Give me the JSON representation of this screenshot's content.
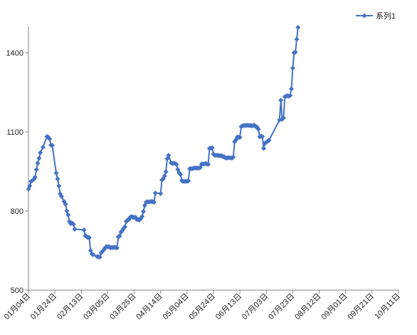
{
  "chart_data": {
    "type": "line",
    "title": "",
    "xlabel": "",
    "ylabel": "",
    "ylim": [
      500,
      1500
    ],
    "yticks": [
      500,
      800,
      1100,
      1400
    ],
    "xticks": [
      "01月04日",
      "01月24日",
      "02月13日",
      "03月05日",
      "03月25日",
      "04月14日",
      "05月04日",
      "05月24日",
      "06月13日",
      "07月03日",
      "07月23日",
      "08月12日",
      "09月01日",
      "09月21日",
      "10月11日"
    ],
    "grid": false,
    "legend_position": "top-right",
    "line_color": "#4472C4",
    "series": [
      {
        "name": "系列1",
        "points": [
          [
            0,
            883
          ],
          [
            1,
            895
          ],
          [
            2,
            912
          ],
          [
            4,
            920
          ],
          [
            5,
            928
          ],
          [
            6,
            957
          ],
          [
            7,
            981
          ],
          [
            8,
            1000
          ],
          [
            9,
            1021
          ],
          [
            11,
            1042
          ],
          [
            14,
            1082
          ],
          [
            15,
            1080
          ],
          [
            16,
            1073
          ],
          [
            17,
            1050
          ],
          [
            18,
            1049
          ],
          [
            21,
            944
          ],
          [
            22,
            922
          ],
          [
            23,
            895
          ],
          [
            24,
            865
          ],
          [
            25,
            855
          ],
          [
            27,
            836
          ],
          [
            28,
            826
          ],
          [
            29,
            800
          ],
          [
            30,
            785
          ],
          [
            31,
            760
          ],
          [
            32,
            752
          ],
          [
            33,
            754
          ],
          [
            34,
            750
          ],
          [
            35,
            731
          ],
          [
            42,
            728
          ],
          [
            43,
            706
          ],
          [
            44,
            703
          ],
          [
            45,
            699
          ],
          [
            46,
            699
          ],
          [
            47,
            650
          ],
          [
            48,
            637
          ],
          [
            49,
            634
          ],
          [
            52,
            627
          ],
          [
            53,
            626
          ],
          [
            54,
            625
          ],
          [
            55,
            641
          ],
          [
            56,
            647
          ],
          [
            57,
            653
          ],
          [
            58,
            660
          ],
          [
            59,
            665
          ],
          [
            60,
            664
          ],
          [
            61,
            665
          ],
          [
            62,
            660
          ],
          [
            63,
            662
          ],
          [
            64,
            661
          ],
          [
            65,
            663
          ],
          [
            66,
            661
          ],
          [
            67,
            660
          ],
          [
            68,
            702
          ],
          [
            69,
            705
          ],
          [
            70,
            720
          ],
          [
            71,
            726
          ],
          [
            72,
            734
          ],
          [
            73,
            740
          ],
          [
            74,
            760
          ],
          [
            75,
            766
          ],
          [
            76,
            767
          ],
          [
            77,
            776
          ],
          [
            78,
            779
          ],
          [
            79,
            776
          ],
          [
            80,
            776
          ],
          [
            81,
            776
          ],
          [
            82,
            768
          ],
          [
            83,
            768
          ],
          [
            84,
            766
          ],
          [
            85,
            771
          ],
          [
            86,
            779
          ],
          [
            87,
            798
          ],
          [
            88,
            821
          ],
          [
            89,
            833
          ],
          [
            90,
            835
          ],
          [
            91,
            834
          ],
          [
            92,
            835
          ],
          [
            93,
            836
          ],
          [
            94,
            835
          ],
          [
            95,
            833
          ],
          [
            96,
            868
          ],
          [
            100,
            866
          ],
          [
            101,
            918
          ],
          [
            102,
            922
          ],
          [
            103,
            933
          ],
          [
            104,
            949
          ],
          [
            105,
            998
          ],
          [
            106,
            1011
          ],
          [
            108,
            982
          ],
          [
            109,
            980
          ],
          [
            110,
            981
          ],
          [
            111,
            980
          ],
          [
            112,
            977
          ],
          [
            113,
            957
          ],
          [
            114,
            945
          ],
          [
            115,
            939
          ],
          [
            116,
            915
          ],
          [
            117,
            913
          ],
          [
            118,
            912
          ],
          [
            119,
            913
          ],
          [
            120,
            913
          ],
          [
            121,
            914
          ],
          [
            122,
            960
          ],
          [
            123,
            960
          ],
          [
            124,
            960
          ],
          [
            125,
            963
          ],
          [
            126,
            963
          ],
          [
            127,
            963
          ],
          [
            128,
            963
          ],
          [
            129,
            963
          ],
          [
            130,
            965
          ],
          [
            131,
            978
          ],
          [
            132,
            978
          ],
          [
            133,
            978
          ],
          [
            134,
            980
          ],
          [
            135,
            978
          ],
          [
            136,
            977
          ],
          [
            137,
            1037
          ],
          [
            138,
            1038
          ],
          [
            139,
            1040
          ],
          [
            140,
            1016
          ],
          [
            141,
            1011
          ],
          [
            142,
            1011
          ],
          [
            143,
            1011
          ],
          [
            144,
            1010
          ],
          [
            145,
            1009
          ],
          [
            146,
            1010
          ],
          [
            147,
            1006
          ],
          [
            148,
            1006
          ],
          [
            149,
            1001
          ],
          [
            150,
            1001
          ],
          [
            151,
            1002
          ],
          [
            152,
            1002
          ],
          [
            153,
            1001
          ],
          [
            154,
            1001
          ],
          [
            155,
            1004
          ],
          [
            156,
            1063
          ],
          [
            157,
            1070
          ],
          [
            158,
            1080
          ],
          [
            159,
            1080
          ],
          [
            160,
            1079
          ],
          [
            161,
            1120
          ],
          [
            162,
            1123
          ],
          [
            163,
            1124
          ],
          [
            164,
            1124
          ],
          [
            165,
            1125
          ],
          [
            166,
            1125
          ],
          [
            167,
            1124
          ],
          [
            168,
            1124
          ],
          [
            169,
            1123
          ],
          [
            170,
            1124
          ],
          [
            171,
            1125
          ],
          [
            172,
            1120
          ],
          [
            173,
            1118
          ],
          [
            174,
            1110
          ],
          [
            175,
            1081
          ],
          [
            176,
            1083
          ],
          [
            177,
            1082
          ],
          [
            178,
            1037
          ],
          [
            179,
            1057
          ],
          [
            180,
            1060
          ],
          [
            181,
            1065
          ],
          [
            182,
            1068
          ],
          [
            190,
            1145
          ],
          [
            191,
            1220
          ],
          [
            192,
            1148
          ],
          [
            193,
            1153
          ],
          [
            194,
            1233
          ],
          [
            195,
            1235
          ],
          [
            196,
            1237
          ],
          [
            197,
            1235
          ],
          [
            198,
            1238
          ],
          [
            199,
            1263
          ],
          [
            200,
            1342
          ],
          [
            201,
            1400
          ],
          [
            202,
            1402
          ],
          [
            203,
            1451
          ],
          [
            204,
            1496
          ]
        ]
      }
    ]
  }
}
